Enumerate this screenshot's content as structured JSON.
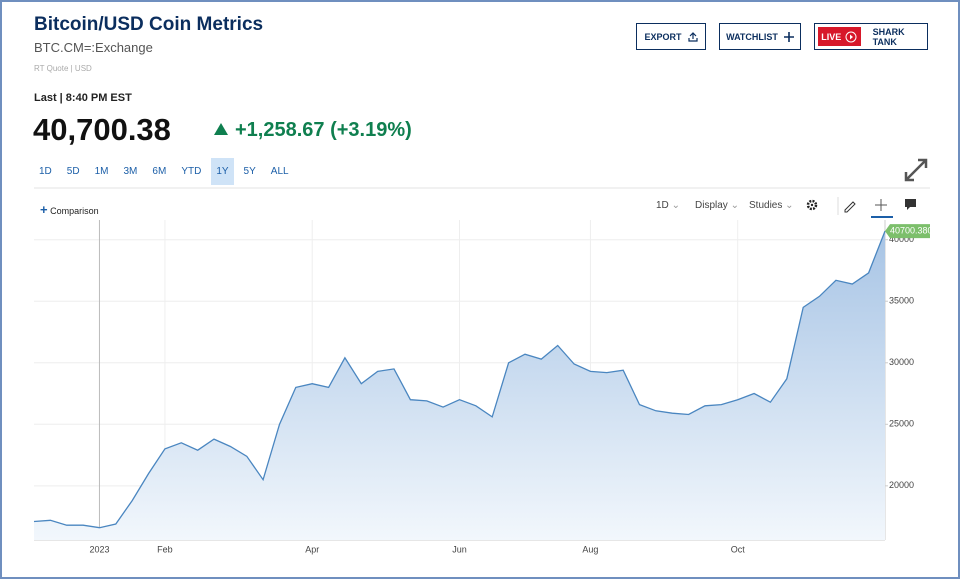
{
  "header": {
    "title": "Bitcoin/USD Coin Metrics",
    "symbol": "BTC.CM=:Exchange",
    "quote_info": "RT Quote | USD"
  },
  "buttons": {
    "export": "EXPORT",
    "watchlist": "WATCHLIST",
    "live": "LIVE",
    "live_show": "SHARK TANK"
  },
  "quote": {
    "last": "Last | 8:40 PM EST",
    "price": "40,700.38",
    "change": "+1,258.67",
    "change_pct": "(+3.19%)"
  },
  "ranges": [
    "1D",
    "5D",
    "1M",
    "3M",
    "6M",
    "YTD",
    "1Y",
    "5Y",
    "ALL"
  ],
  "selected_range": 6,
  "toolbar": {
    "comparison": "Comparison",
    "interval": "1D",
    "display": "Display",
    "studies": "Studies"
  },
  "chart_data": {
    "type": "area",
    "categories": [
      null,
      null,
      null,
      null,
      "2023",
      null,
      null,
      null,
      "Feb",
      null,
      null,
      null,
      null,
      null,
      null,
      null,
      null,
      "Apr",
      null,
      null,
      null,
      null,
      null,
      null,
      null,
      null,
      "Jun",
      null,
      null,
      null,
      null,
      null,
      null,
      null,
      "Aug",
      null,
      null,
      null,
      null,
      null,
      null,
      null,
      null,
      "Oct",
      null,
      null,
      null,
      null,
      null,
      null,
      null,
      null,
      null
    ],
    "values": [
      17100,
      17200,
      16800,
      16800,
      16600,
      16900,
      18800,
      21000,
      23000,
      23500,
      22900,
      23800,
      23200,
      22400,
      20500,
      25000,
      28000,
      28300,
      28000,
      30400,
      28300,
      29300,
      29500,
      27000,
      26900,
      26400,
      27000,
      26500,
      25600,
      30000,
      30700,
      30300,
      31400,
      29900,
      29300,
      29200,
      29400,
      26600,
      26100,
      25900,
      25800,
      26500,
      26600,
      27000,
      27500,
      26800,
      28700,
      34500,
      35400,
      36700,
      36400,
      37300,
      40700.38
    ],
    "color": "#4a86c0",
    "ylim": [
      15600,
      41600
    ],
    "yticks": [
      20000,
      25000,
      30000,
      35000,
      40000
    ],
    "grid": true,
    "last_value_label": "40700.380"
  }
}
